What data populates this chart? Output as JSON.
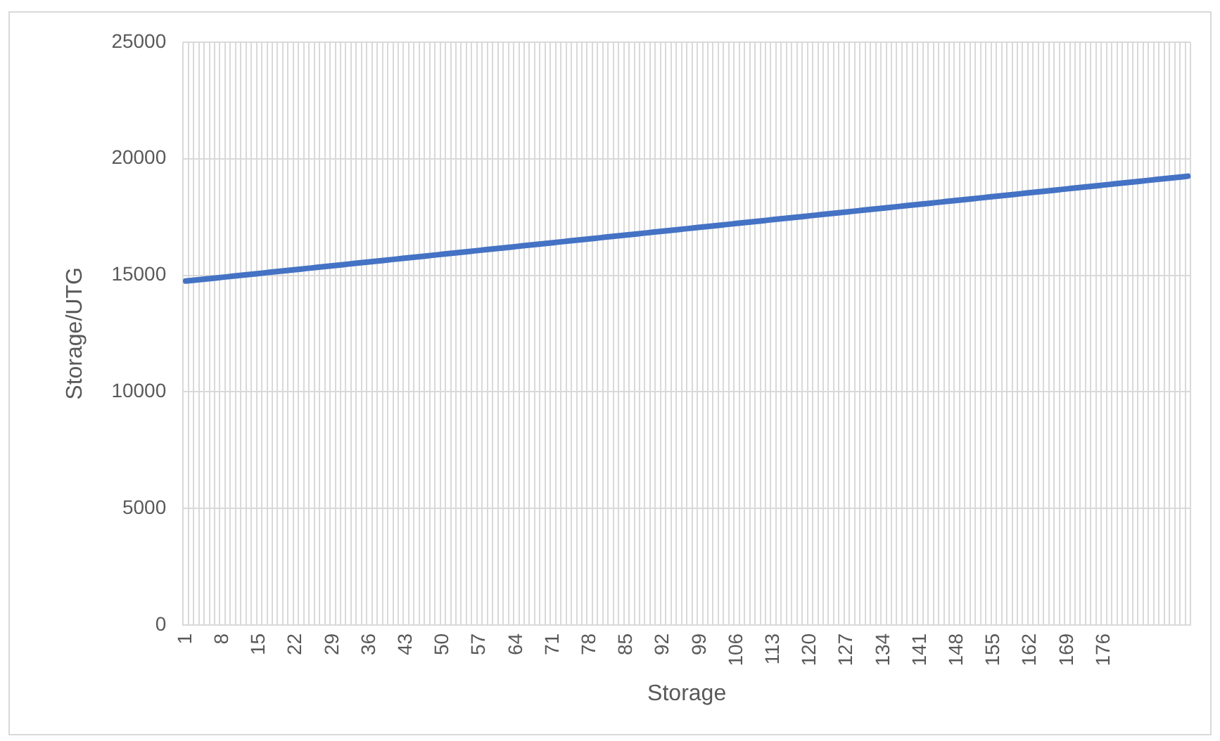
{
  "chart_data": {
    "type": "line",
    "xlabel": "Storage",
    "ylabel": "Storage/UTG",
    "categories": [
      "1",
      null,
      null,
      null,
      null,
      null,
      null,
      "8",
      null,
      null,
      null,
      null,
      null,
      null,
      "15",
      null,
      null,
      null,
      null,
      null,
      null,
      "22",
      null,
      null,
      null,
      null,
      null,
      null,
      "29",
      null,
      null,
      null,
      null,
      null,
      null,
      "36",
      null,
      null,
      null,
      null,
      null,
      null,
      "43",
      null,
      null,
      null,
      null,
      null,
      null,
      "50",
      null,
      null,
      null,
      null,
      null,
      null,
      "57",
      null,
      null,
      null,
      null,
      null,
      null,
      "64",
      null,
      null,
      null,
      null,
      null,
      null,
      "71",
      null,
      null,
      null,
      null,
      null,
      null,
      "78",
      null,
      null,
      null,
      null,
      null,
      null,
      "85",
      null,
      null,
      null,
      null,
      null,
      null,
      "92",
      null,
      null,
      null,
      null,
      null,
      null,
      "99",
      null,
      null,
      null,
      null,
      null,
      null,
      "106",
      null,
      null,
      null,
      null,
      null,
      null,
      "113",
      null,
      null,
      null,
      null,
      null,
      null,
      "120",
      null,
      null,
      null,
      null,
      null,
      null,
      "127",
      null,
      null,
      null,
      null,
      null,
      null,
      "134",
      null,
      null,
      null,
      null,
      null,
      null,
      "141",
      null,
      null,
      null,
      null,
      null,
      null,
      "148",
      null,
      null,
      null,
      null,
      null,
      null,
      "155",
      null,
      null,
      null,
      null,
      null,
      null,
      "162",
      null,
      null,
      null,
      null,
      null,
      null,
      "169",
      null,
      null,
      null,
      null,
      null,
      null,
      "176",
      null,
      null,
      null,
      null,
      null,
      null,
      null,
      null,
      null,
      null,
      null,
      null,
      null,
      null,
      null,
      null
    ],
    "series": [
      {
        "color": "#4472c4",
        "values": [
          14750,
          14774,
          14797,
          14821,
          14844,
          14868,
          14891,
          14915,
          14938,
          14962,
          14986,
          15010,
          15033,
          15057,
          15080,
          15104,
          15127,
          15151,
          15174,
          15198,
          15221,
          15245,
          15268,
          15292,
          15315,
          15339,
          15362,
          15386,
          15409,
          15433,
          15457,
          15481,
          15504,
          15528,
          15551,
          15575,
          15598,
          15622,
          15645,
          15669,
          15692,
          15716,
          15739,
          15763,
          15786,
          15810,
          15833,
          15857,
          15880,
          15904,
          15928,
          15952,
          15975,
          15999,
          16022,
          16046,
          16069,
          16093,
          16116,
          16140,
          16164,
          16188,
          16211,
          16235,
          16258,
          16282,
          16305,
          16329,
          16352,
          16376,
          16399,
          16423,
          16446,
          16470,
          16493,
          16517,
          16540,
          16564,
          16587,
          16611,
          16635,
          16659,
          16682,
          16706,
          16729,
          16753,
          16776,
          16800,
          16823,
          16847,
          16870,
          16894,
          16917,
          16941,
          16964,
          16988,
          17011,
          17035,
          17058,
          17082,
          17106,
          17130,
          17153,
          17177,
          17200,
          17224,
          17247,
          17271,
          17294,
          17318,
          17342,
          17366,
          17389,
          17413,
          17436,
          17460,
          17483,
          17507,
          17530,
          17554,
          17577,
          17601,
          17624,
          17648,
          17671,
          17695,
          17718,
          17742,
          17765,
          17789,
          17813,
          17837,
          17860,
          17884,
          17907,
          17931,
          17954,
          17978,
          18001,
          18025,
          18048,
          18072,
          18095,
          18119,
          18142,
          18166,
          18189,
          18213,
          18236,
          18260,
          18284,
          18308,
          18331,
          18355,
          18378,
          18402,
          18425,
          18449,
          18472,
          18496,
          18520,
          18544,
          18567,
          18591,
          18614,
          18638,
          18661,
          18685,
          18708,
          18732,
          18755,
          18779,
          18802,
          18826,
          18849,
          18873,
          18896,
          18920,
          18943,
          18967,
          18991,
          19015,
          19038,
          19062,
          19085,
          19109,
          19132,
          19156,
          19179,
          19203,
          19226,
          19250
        ]
      }
    ],
    "ylim": [
      0,
      25000
    ],
    "yticks": [
      0,
      5000,
      10000,
      15000,
      20000,
      25000
    ],
    "grid": true,
    "legend": false,
    "marker": "none",
    "line_style": "solid"
  }
}
